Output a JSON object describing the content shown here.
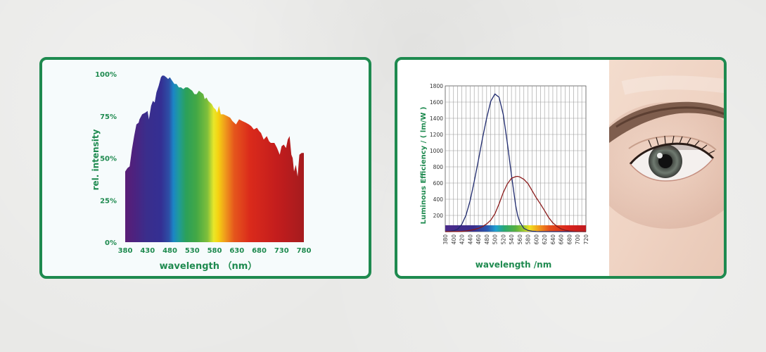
{
  "colors": {
    "frame": "#1e8a4f",
    "label_green": "#1e8a4f",
    "curve_blue": "#1f2a6e",
    "curve_red": "#8a1a1a"
  },
  "chart_data": [
    {
      "type": "area",
      "title": "",
      "xlabel": "wavelength （nm）",
      "ylabel": "rel. intensity",
      "xlim": [
        380,
        780
      ],
      "ylim": [
        0,
        100
      ],
      "x_ticks": [
        380,
        430,
        480,
        530,
        580,
        630,
        680,
        730,
        780
      ],
      "x_tick_labels": [
        "380",
        "430",
        "480",
        "530",
        "580",
        "630",
        "680",
        "730",
        "780"
      ],
      "y_ticks": [
        0,
        25,
        50,
        75,
        100
      ],
      "y_tick_labels": [
        "0%",
        "25%",
        "50%",
        "75%",
        "100%"
      ],
      "fill": "visible spectrum gradient",
      "grid": false,
      "x": [
        380,
        385,
        390,
        395,
        400,
        405,
        410,
        412,
        418,
        425,
        430,
        433,
        438,
        442,
        446,
        450,
        455,
        460,
        463,
        467,
        472,
        476,
        480,
        485,
        490,
        495,
        500,
        505,
        510,
        515,
        520,
        525,
        530,
        535,
        540,
        545,
        550,
        555,
        558,
        562,
        566,
        570,
        574,
        578,
        582,
        586,
        590,
        594,
        600,
        608,
        615,
        620,
        628,
        635,
        642,
        650,
        657,
        662,
        668,
        675,
        680,
        684,
        690,
        697,
        702,
        706,
        710,
        714,
        720,
        726,
        730,
        735,
        740,
        744,
        748,
        752,
        755,
        758,
        762,
        766,
        770,
        775,
        780
      ],
      "y": [
        42,
        44,
        45,
        55,
        63,
        70,
        71,
        73,
        76,
        77,
        78,
        73,
        81,
        84,
        83,
        89,
        93,
        98,
        99,
        99,
        98,
        97,
        98,
        96,
        94,
        94,
        92,
        92,
        91,
        92,
        92,
        91,
        90,
        88,
        88,
        90,
        89,
        88,
        85,
        86,
        84,
        83,
        82,
        80,
        79,
        77,
        81,
        76,
        76,
        75,
        74,
        72,
        70,
        73,
        72,
        71,
        70,
        69,
        67,
        68,
        66,
        65,
        61,
        63,
        60,
        59,
        59,
        59,
        56,
        52,
        57,
        58,
        56,
        61,
        63,
        52,
        50,
        42,
        46,
        39,
        52,
        53,
        53
      ]
    },
    {
      "type": "line",
      "title": "",
      "xlabel": "wavelength /nm",
      "ylabel": "Luminous Efficiency / ( lm/W )",
      "xlim": [
        380,
        720
      ],
      "ylim": [
        0,
        1800
      ],
      "x_ticks": [
        380,
        400,
        420,
        440,
        460,
        480,
        500,
        520,
        540,
        560,
        580,
        600,
        620,
        640,
        660,
        680,
        700,
        720
      ],
      "x_tick_labels": [
        "380",
        "400",
        "420",
        "440",
        "460",
        "480",
        "500",
        "520",
        "540",
        "560",
        "580",
        "600",
        "620",
        "640",
        "660",
        "680",
        "700",
        "720"
      ],
      "y_ticks": [
        200,
        400,
        600,
        800,
        1000,
        1200,
        1400,
        1600,
        1800
      ],
      "y_tick_labels": [
        "200",
        "400",
        "600",
        "800",
        "1000",
        "1200",
        "1400",
        "1600",
        "1800"
      ],
      "grid": true,
      "x": [
        380,
        390,
        400,
        410,
        420,
        430,
        440,
        450,
        460,
        470,
        480,
        490,
        500,
        510,
        520,
        530,
        540,
        550,
        555,
        560,
        570,
        580,
        590,
        600,
        610,
        620,
        630,
        640,
        650,
        660,
        670,
        680,
        690,
        700,
        710,
        720
      ],
      "series": [
        {
          "values": [
            0,
            3,
            10,
            30,
            90,
            200,
            380,
            620,
            880,
            1150,
            1400,
            1610,
            1700,
            1660,
            1450,
            1100,
            700,
            330,
            200,
            120,
            40,
            15,
            5,
            2,
            0,
            0,
            0,
            0,
            0,
            0,
            0,
            0,
            0,
            0,
            0,
            0
          ]
        },
        {
          "values": [
            0,
            0,
            1,
            2,
            3,
            8,
            16,
            26,
            41,
            62,
            95,
            142,
            220,
            343,
            481,
            588,
            658,
            679,
            683,
            676,
            645,
            593,
            506,
            418,
            342,
            259,
            173,
            109,
            65,
            34,
            17,
            8,
            4,
            2,
            1,
            0
          ]
        }
      ]
    }
  ]
}
